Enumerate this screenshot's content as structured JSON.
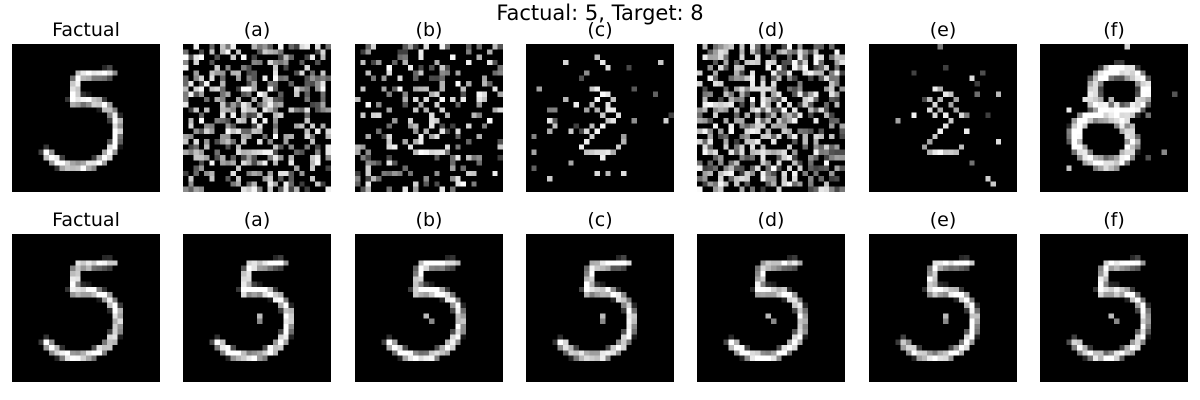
{
  "figure": {
    "title": "Factual: 5, Target: 8"
  },
  "rows": [
    {
      "panels": [
        {
          "title": "Factual",
          "kind": "factual"
        },
        {
          "title": "(a)",
          "kind": "noisy"
        },
        {
          "title": "(b)",
          "kind": "noisy"
        },
        {
          "title": "(c)",
          "kind": "noisy"
        },
        {
          "title": "(d)",
          "kind": "noisy"
        },
        {
          "title": "(e)",
          "kind": "noisy"
        },
        {
          "title": "(f)",
          "kind": "eight"
        }
      ]
    },
    {
      "panels": [
        {
          "title": "Factual",
          "kind": "factual"
        },
        {
          "title": "(a)",
          "kind": "five-blob"
        },
        {
          "title": "(b)",
          "kind": "five-blob"
        },
        {
          "title": "(c)",
          "kind": "five-blob"
        },
        {
          "title": "(d)",
          "kind": "five-blob"
        },
        {
          "title": "(e)",
          "kind": "five-blob"
        },
        {
          "title": "(f)",
          "kind": "five-blob"
        }
      ]
    }
  ],
  "colors": {
    "background": "#ffffff",
    "image_background": "#000000",
    "stroke": "#ffffff"
  }
}
